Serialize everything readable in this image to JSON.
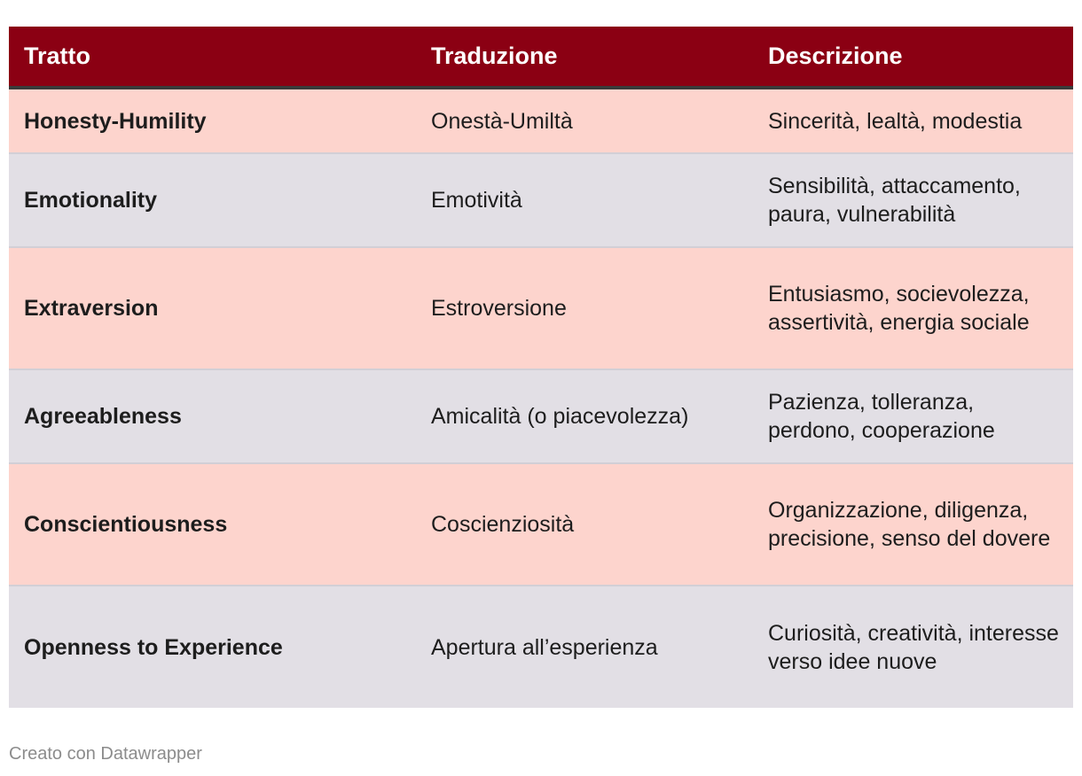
{
  "table": {
    "headers": [
      "Tratto",
      "Traduzione",
      "Descrizione"
    ],
    "rows": [
      {
        "trait": "Honesty-Humility",
        "translation": "Onestà-Umiltà",
        "description": "Sincerità, lealtà, modestia"
      },
      {
        "trait": "Emotionality",
        "translation": "Emotività",
        "description": "Sensibilità, attaccamento, paura, vulnerabilità"
      },
      {
        "trait": "Extraversion",
        "translation": "Estroversione",
        "description": "Entusiasmo, socievolezza, assertività, energia sociale"
      },
      {
        "trait": "Agreeableness",
        "translation": "Amicalità (o piacevolezza)",
        "description": "Pazienza, tolleranza, perdono, cooperazione"
      },
      {
        "trait": "Conscientiousness",
        "translation": "Coscienziosità",
        "description": "Organizzazione, diligenza, precisione, senso del dovere"
      },
      {
        "trait": "Openness to Experience",
        "translation": "Apertura all’esperienza",
        "description": "Curiosità, creatività, interesse verso idee nuove"
      }
    ]
  },
  "footer": {
    "credit": "Creato con Datawrapper"
  },
  "colors": {
    "header_bg": "#8b0013",
    "row_odd_bg": "#fdd4cd",
    "row_even_bg": "#e2dfe5"
  }
}
